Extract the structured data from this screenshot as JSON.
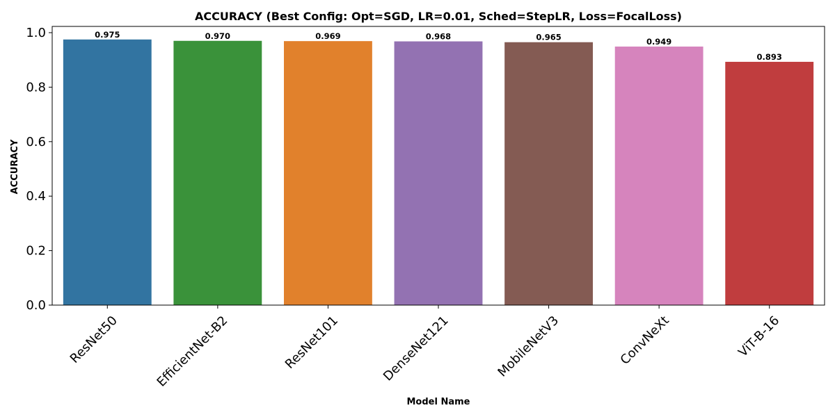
{
  "chart_data": {
    "type": "bar",
    "title": "ACCURACY (Best Config: Opt=SGD, LR=0.01, Sched=StepLR, Loss=FocalLoss)",
    "xlabel": "Model Name",
    "ylabel": "ACCURACY",
    "ylim": [
      0,
      1.0
    ],
    "yticks": [
      "0.0",
      "0.2",
      "0.4",
      "0.6",
      "0.8",
      "1.0"
    ],
    "categories": [
      "ResNet50",
      "EfficientNet-B2",
      "ResNet101",
      "DenseNet121",
      "MobileNetV3",
      "ConvNeXt",
      "ViT-B-16"
    ],
    "values": [
      0.975,
      0.97,
      0.969,
      0.968,
      0.965,
      0.949,
      0.893
    ],
    "value_labels": [
      "0.975",
      "0.970",
      "0.969",
      "0.968",
      "0.965",
      "0.949",
      "0.893"
    ],
    "colors": [
      "#3274a1",
      "#3a923a",
      "#e1812c",
      "#9372b2",
      "#845b53",
      "#d684bd",
      "#c03d3e"
    ],
    "grid": false,
    "legend": "none"
  }
}
